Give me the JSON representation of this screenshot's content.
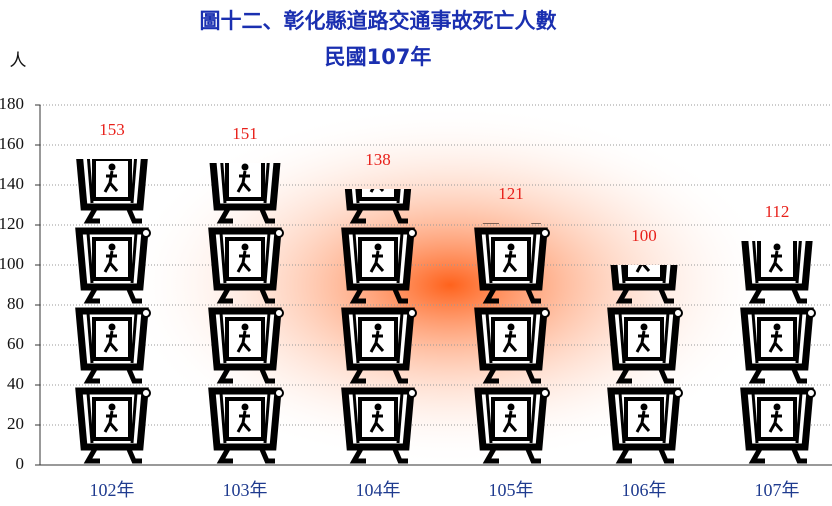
{
  "chart_data": {
    "type": "pictograph",
    "title": "圖十二、彰化縣道路交通事故死亡人數",
    "subtitle": "民國107年",
    "y_label": "人",
    "categories": [
      "102年",
      "103年",
      "104年",
      "105年",
      "106年",
      "107年"
    ],
    "values": [
      153,
      151,
      138,
      121,
      100,
      112
    ],
    "ylim": [
      0,
      180
    ],
    "yticks": [
      0,
      20,
      40,
      60,
      80,
      100,
      120,
      140,
      160,
      180
    ],
    "grid": true,
    "label_color": "#e8201a"
  }
}
